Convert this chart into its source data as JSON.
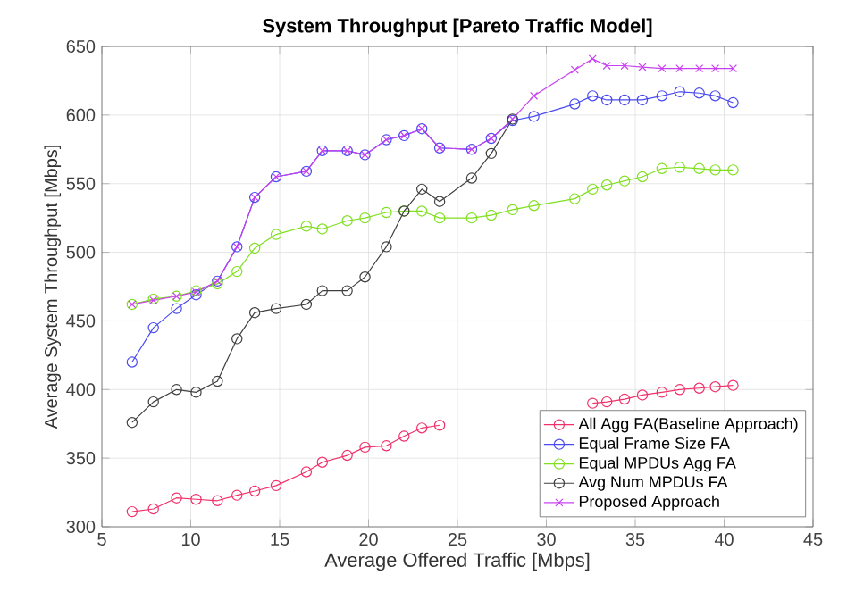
{
  "chart_data": {
    "type": "line",
    "title": "System Throughput [Pareto Traffic Model]",
    "xlabel": "Average Offered Traffic [Mbps]",
    "ylabel": "Average System Throughput [Mbps]",
    "x": [
      6.7,
      7.9,
      9.2,
      10.3,
      11.5,
      12.6,
      13.6,
      14.8,
      16.5,
      17.4,
      18.8,
      19.8,
      21.0,
      22.0,
      23.0,
      24.0,
      25.8,
      26.9,
      28.1,
      29.3,
      31.6,
      32.6,
      33.4,
      34.4,
      35.4,
      36.5,
      37.5,
      38.6,
      39.5,
      40.5
    ],
    "series": [
      {
        "name": "All Agg FA(Baseline Approach)",
        "color": "#f0306a",
        "marker": "circle",
        "values": [
          311,
          313,
          321,
          320,
          319,
          323,
          326,
          330,
          340,
          347,
          352,
          358,
          359,
          366,
          372,
          374,
          null,
          null,
          null,
          null,
          null,
          390,
          391,
          393,
          396,
          398,
          400,
          401,
          402,
          403
        ]
      },
      {
        "name": "Equal Frame Size FA",
        "color": "#4a4af0",
        "marker": "circle",
        "values": [
          420,
          445,
          459,
          469,
          479,
          504,
          540,
          555,
          559,
          574,
          574,
          571,
          582,
          585,
          590,
          576,
          575,
          583,
          596,
          599,
          608,
          614,
          611,
          611,
          611,
          614,
          617,
          616,
          614,
          609
        ]
      },
      {
        "name": "Equal MPDUs Agg FA",
        "color": "#80e020",
        "marker": "circle",
        "values": [
          462,
          466,
          468,
          472,
          477,
          486,
          503,
          513,
          519,
          517,
          523,
          525,
          529,
          530,
          530,
          525,
          525,
          527,
          531,
          534,
          539,
          546,
          549,
          552,
          555,
          561,
          562,
          561,
          560,
          560
        ]
      },
      {
        "name": "Avg Num MPDUs FA",
        "color": "#404040",
        "marker": "circle",
        "values": [
          376,
          391,
          400,
          398,
          406,
          437,
          456,
          459,
          462,
          472,
          472,
          482,
          504,
          530,
          546,
          537,
          554,
          572,
          597,
          null,
          null,
          null,
          null,
          null,
          null,
          null,
          null,
          null,
          null,
          null
        ]
      },
      {
        "name": "Proposed Approach",
        "color": "#c840f0",
        "marker": "cross",
        "values": [
          462,
          465,
          468,
          471,
          479,
          504,
          540,
          555,
          559,
          574,
          574,
          571,
          582,
          585,
          590,
          576,
          575,
          583,
          597,
          614,
          633,
          641,
          636,
          636,
          635,
          634,
          634,
          634,
          634,
          634
        ]
      }
    ],
    "xlim": [
      5,
      45
    ],
    "xticks": [
      5,
      10,
      15,
      20,
      25,
      30,
      35,
      40,
      45
    ],
    "ylim": [
      300,
      650
    ],
    "yticks": [
      300,
      350,
      400,
      450,
      500,
      550,
      600,
      650
    ],
    "grid": true,
    "legend": "bottom right",
    "line_style": "solid"
  }
}
